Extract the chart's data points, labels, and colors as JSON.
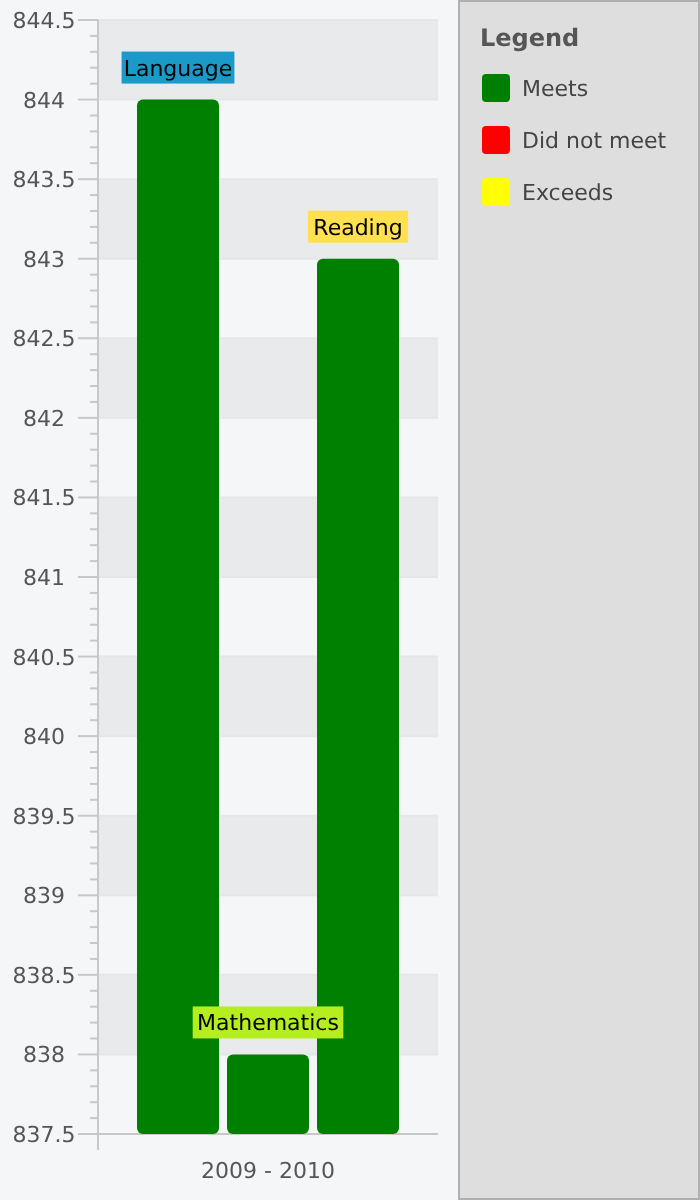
{
  "chart_data": {
    "type": "bar",
    "categories": [
      "Language",
      "Mathematics",
      "Reading"
    ],
    "xlabel": "2009 - 2010",
    "legend_title": "Legend",
    "legend": "right",
    "grid": true,
    "series": [
      {
        "name": "Meets",
        "color": "#008000",
        "values": [
          844,
          838,
          843
        ]
      },
      {
        "name": "Did not meet",
        "color": "#ff0000",
        "values": [
          null,
          null,
          null
        ]
      },
      {
        "name": "Exceeds",
        "color": "#ffff00",
        "values": [
          null,
          null,
          null
        ]
      }
    ],
    "ylim": [
      837.5,
      844.5
    ],
    "yticks": [
      837.5,
      838,
      838.5,
      839,
      839.5,
      840,
      840.5,
      841,
      841.5,
      842,
      842.5,
      843,
      843.5,
      844,
      844.5
    ]
  }
}
